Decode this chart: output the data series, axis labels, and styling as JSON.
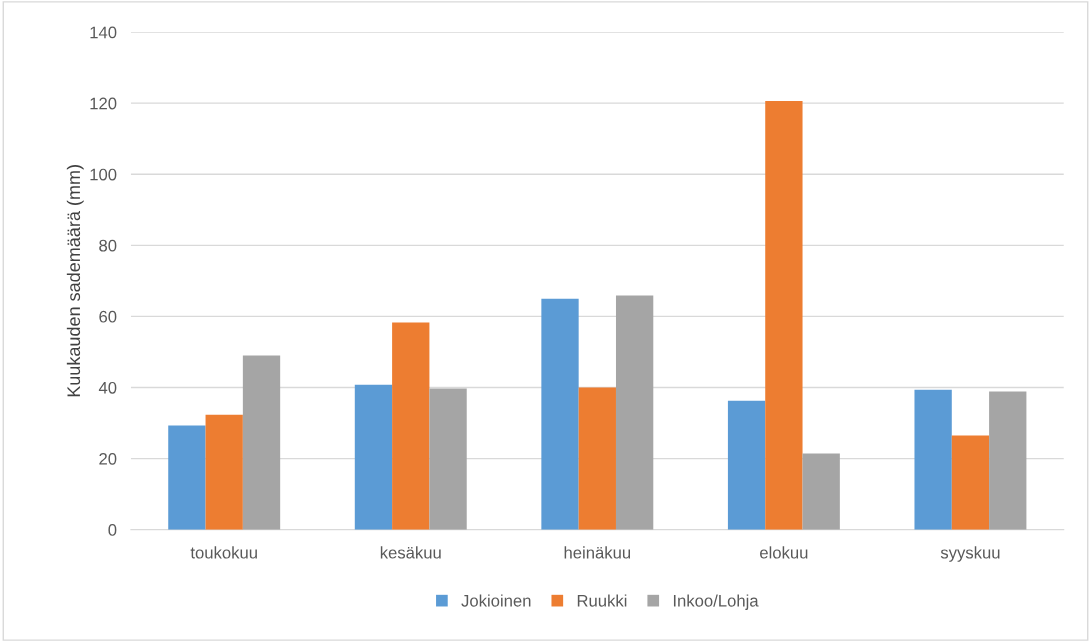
{
  "chart_data": {
    "type": "bar",
    "ylabel": "Kuukauden sademäärä (mm)",
    "categories": [
      "toukokuu",
      "kesäkuu",
      "heinäkuu",
      "elokuu",
      "syyskuu"
    ],
    "series": [
      {
        "name": "Jokioinen",
        "color": "#5b9bd5",
        "values": [
          29.3,
          40.8,
          65.0,
          36.3,
          39.4
        ]
      },
      {
        "name": "Ruukki",
        "color": "#ed7d31",
        "values": [
          32.3,
          58.3,
          40.0,
          120.6,
          26.5
        ]
      },
      {
        "name": "Inkoo/Lohja",
        "color": "#a5a5a5",
        "values": [
          49.0,
          39.7,
          65.9,
          21.4,
          38.9
        ]
      }
    ],
    "ylim": [
      0,
      140
    ],
    "yticks": [
      0,
      20,
      40,
      60,
      80,
      100,
      120,
      140
    ],
    "grid": "y",
    "legend": "bottom"
  }
}
